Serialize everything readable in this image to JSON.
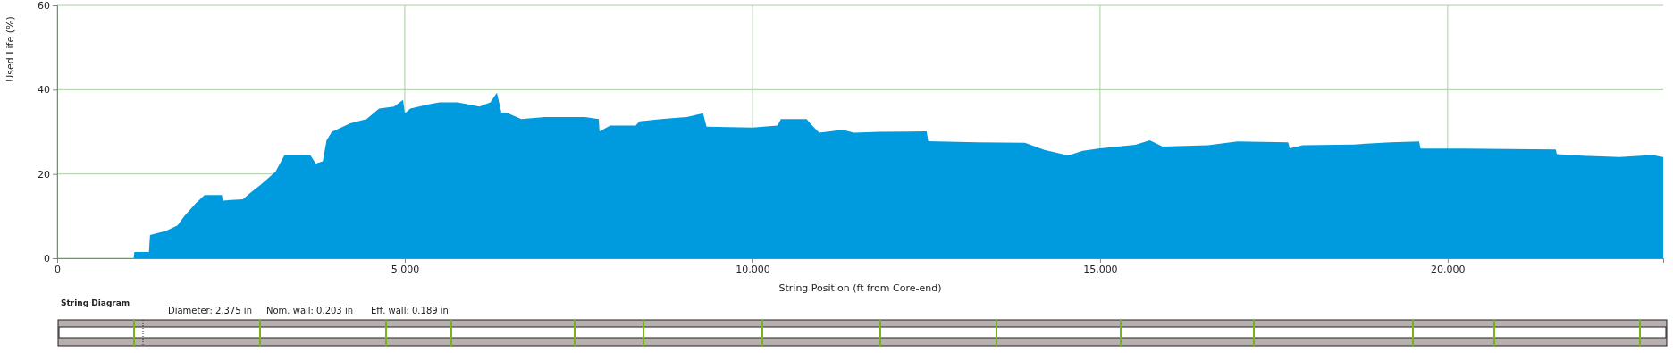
{
  "chart_data": {
    "type": "area",
    "xlabel": "String Position (ft from Core-end)",
    "ylabel": "Used Life (%)",
    "xlim": [
      0,
      23100
    ],
    "ylim": [
      0,
      60
    ],
    "xticks": [
      {
        "value": 0,
        "label": "0"
      },
      {
        "value": 5000,
        "label": "5,000"
      },
      {
        "value": 10000,
        "label": "10,000"
      },
      {
        "value": 15000,
        "label": "15,000"
      },
      {
        "value": 20000,
        "label": "20,000"
      }
    ],
    "yticks": [
      0,
      20,
      40,
      60
    ],
    "grid": true,
    "series": [
      {
        "color": "#009bde",
        "x": [
          0,
          1100,
          1110,
          1320,
          1335,
          1570,
          1730,
          1830,
          1990,
          2120,
          2370,
          2380,
          2670,
          2775,
          2930,
          3140,
          3270,
          3640,
          3720,
          3820,
          3875,
          3950,
          4215,
          4450,
          4630,
          4845,
          4975,
          5000,
          5080,
          5340,
          5500,
          5760,
          6075,
          6230,
          6325,
          6390,
          6470,
          6675,
          7015,
          7370,
          7590,
          7790,
          7800,
          7955,
          8320,
          8375,
          8690,
          9055,
          9290,
          9340,
          10000,
          10360,
          10410,
          10780,
          10830,
          10960,
          11300,
          11460,
          11825,
          12505,
          12530,
          13240,
          13920,
          14200,
          14545,
          14750,
          15000,
          15508,
          15715,
          15900,
          16555,
          16975,
          17705,
          17730,
          17915,
          18650,
          19175,
          19590,
          19610,
          20220,
          21555,
          21570,
          22000,
          22470,
          22940,
          23100
        ],
        "values": [
          0,
          0,
          1.5,
          1.5,
          5.5,
          6.5,
          7.8,
          10,
          13,
          15,
          15,
          13.7,
          14,
          15.5,
          17.5,
          20.5,
          24.5,
          24.5,
          22.5,
          23,
          28,
          30,
          32,
          33,
          35.5,
          36,
          37.6,
          34.4,
          35.5,
          36.5,
          37,
          37,
          36,
          37,
          39.3,
          34.5,
          34.5,
          33,
          33.5,
          33.5,
          33.5,
          33,
          30.1,
          31.5,
          31.5,
          32.5,
          33,
          33.5,
          34.4,
          31.2,
          31,
          31.5,
          33,
          33,
          32,
          29.8,
          30.5,
          29.8,
          30,
          30.1,
          27.8,
          27.5,
          27.4,
          25.7,
          24.4,
          25.5,
          26.1,
          26.9,
          28,
          26.5,
          26.8,
          27.7,
          27.5,
          26.1,
          26.8,
          27,
          27.5,
          27.7,
          26,
          26,
          25.8,
          24.7,
          24.3,
          24,
          24.5,
          24
        ]
      }
    ],
    "annotations": [
      "String Diagram",
      "Diameter: 2.375 in",
      "Nom. wall: 0.203 in",
      "Eff. wall: 0.189 in"
    ]
  }
}
